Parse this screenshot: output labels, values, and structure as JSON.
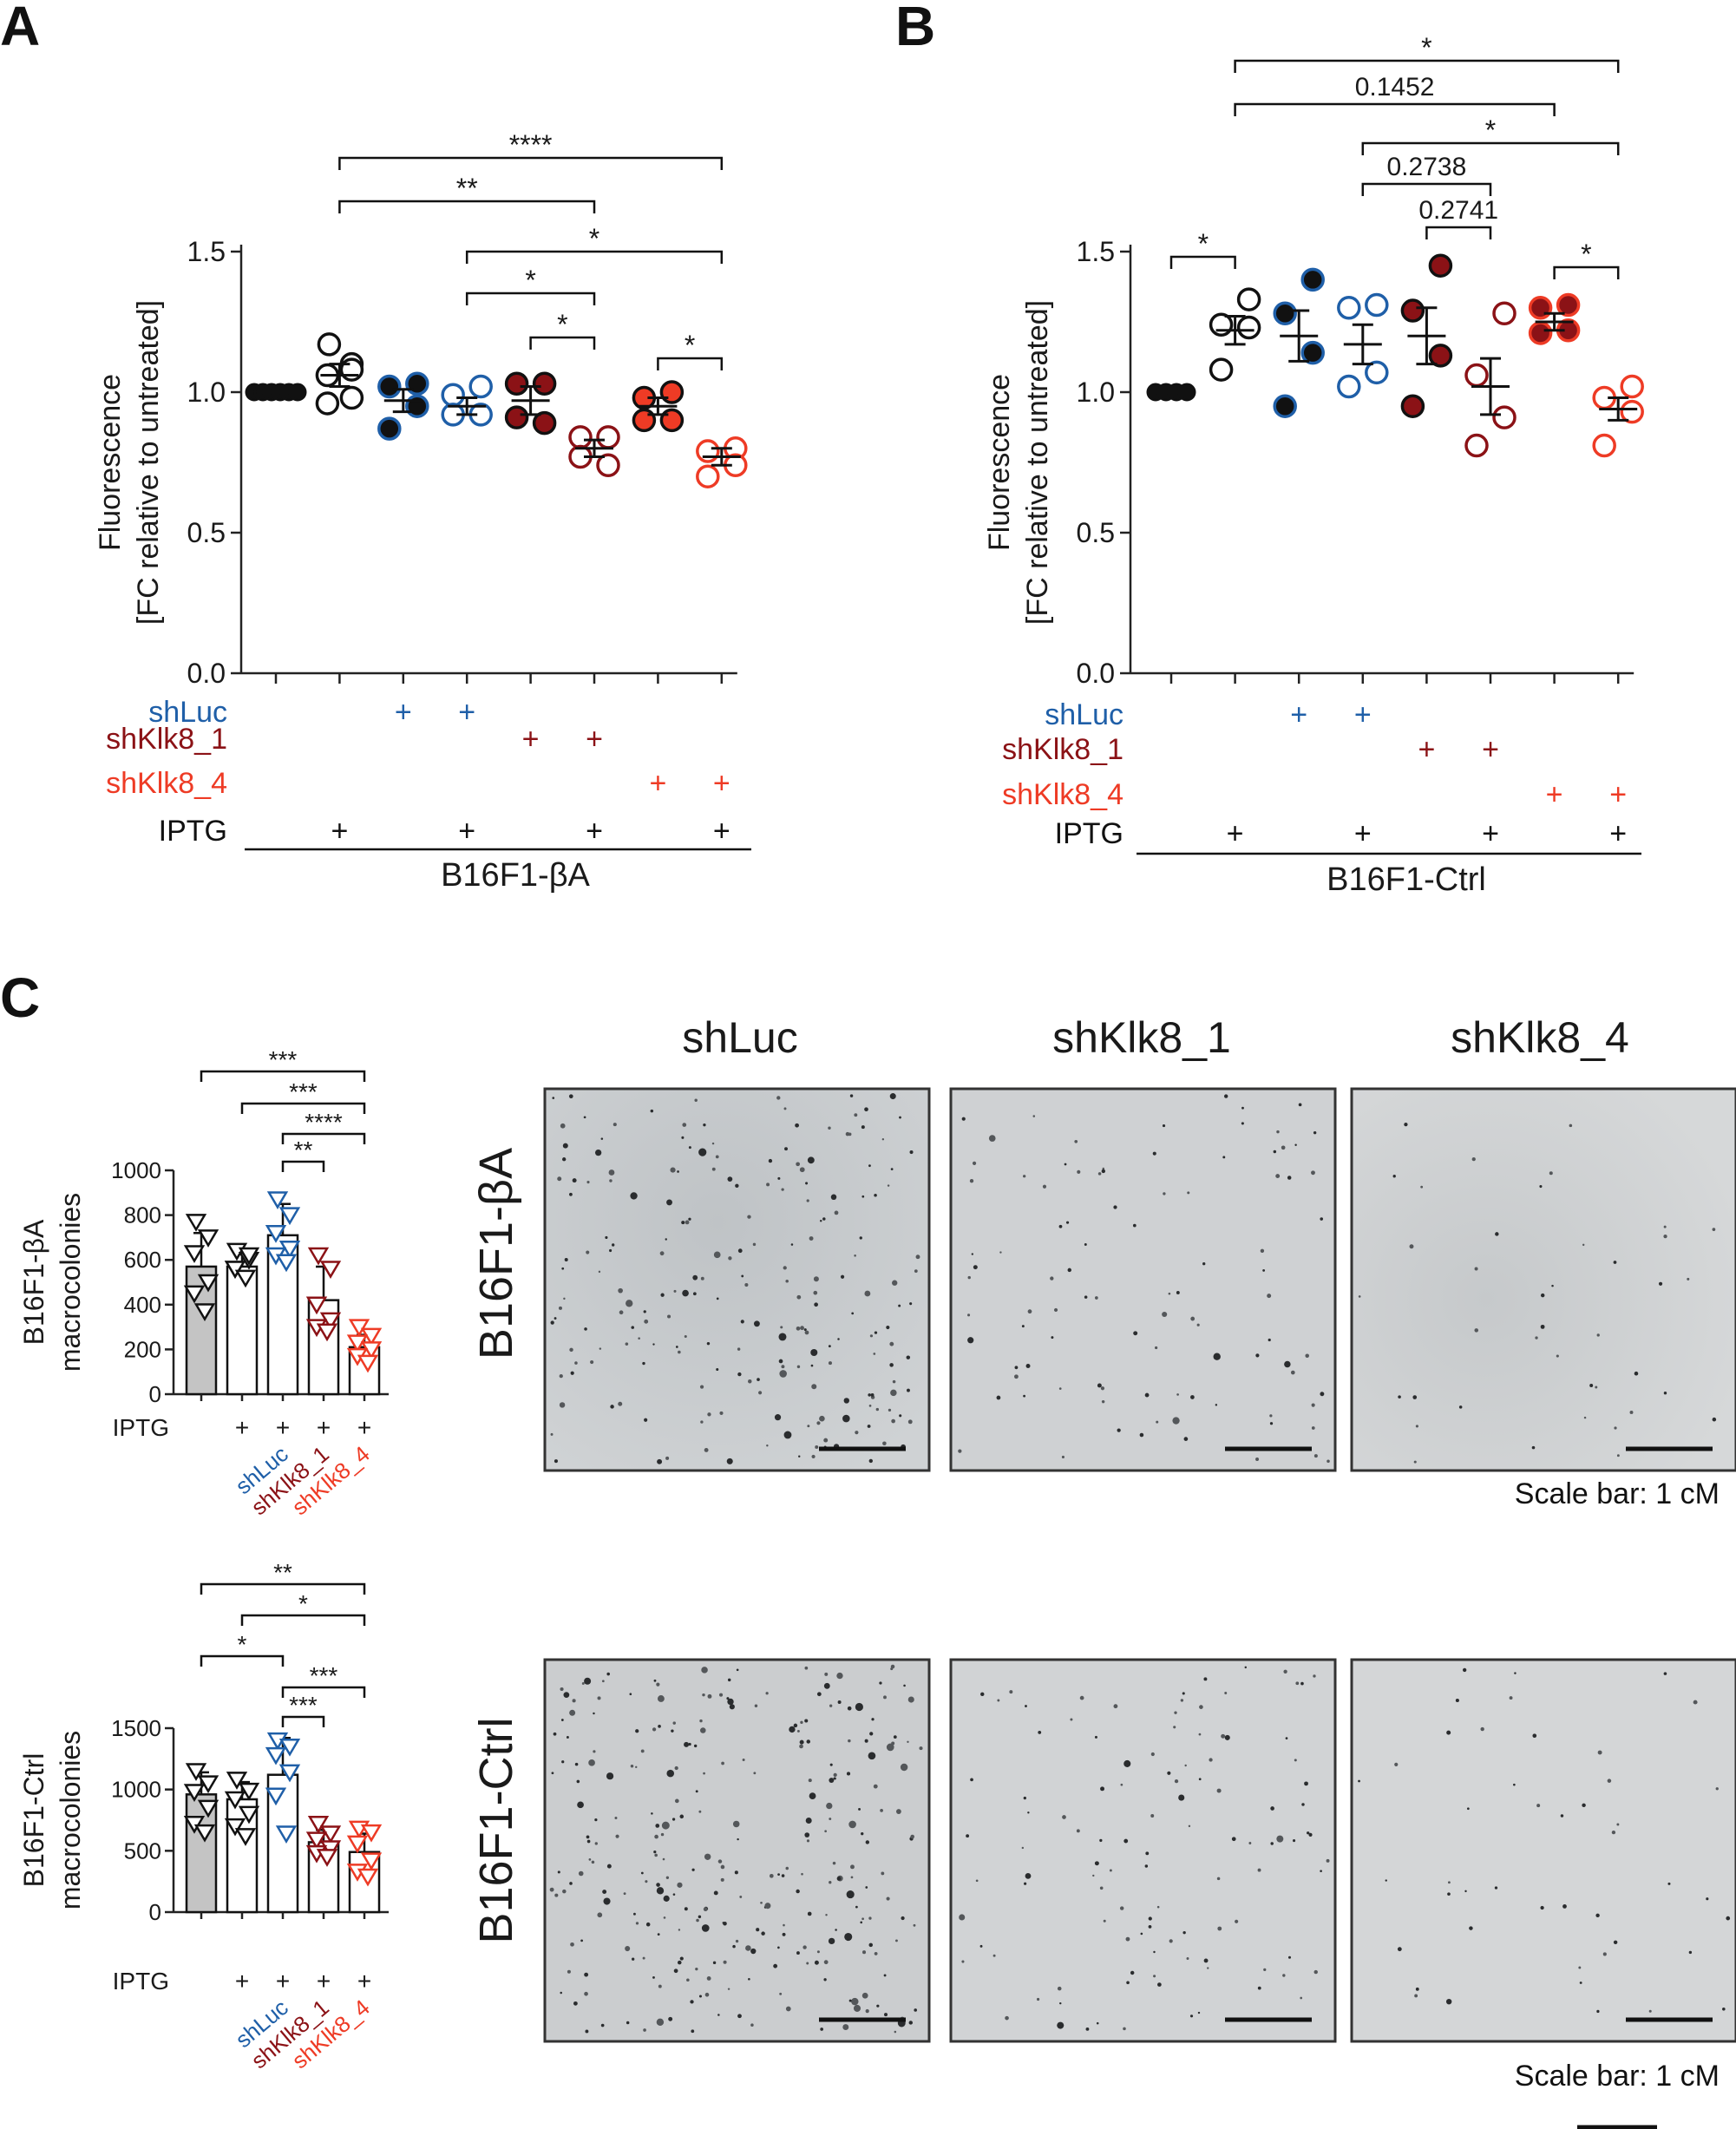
{
  "colors": {
    "shLuc": "#1f5fa8",
    "shKlk8_1": "#8b1216",
    "shKlk8_4": "#ee3b25",
    "black": "#111111",
    "gray_bar": "#c4c4c4",
    "image_bg": "#c9cccf"
  },
  "panels": {
    "a": {
      "letter": "A"
    },
    "b": {
      "letter": "B"
    },
    "c": {
      "letter": "C"
    }
  },
  "chart_data": [
    {
      "id": "A",
      "type": "scatter",
      "title": "",
      "ylabel": [
        "Fluorescence",
        "[FC relative to untreated]"
      ],
      "ylim": [
        0,
        1.5
      ],
      "yticks": [
        "0.0",
        "0.5",
        "1.0",
        "1.5"
      ],
      "group_label": "B16F1-βA",
      "row_labels": [
        "shLuc",
        "shKlk8_1",
        "shKlk8_4",
        "IPTG"
      ],
      "groups": [
        {
          "fill": "#111111",
          "stroke": "#111111",
          "shLuc": false,
          "klk1": false,
          "klk4": false,
          "iptg": false,
          "points": [
            1.0,
            1.0,
            1.0,
            1.0,
            1.0,
            1.0
          ],
          "mean": 1.0,
          "sem": 0
        },
        {
          "fill": "#ffffff",
          "stroke": "#111111",
          "shLuc": false,
          "klk1": false,
          "klk4": false,
          "iptg": true,
          "points": [
            1.17,
            1.1,
            1.06,
            0.98,
            0.96,
            1.08
          ],
          "mean": 1.06,
          "sem": 0.04
        },
        {
          "fill": "#111111",
          "stroke": "#1f5fa8",
          "shLuc": true,
          "klk1": false,
          "klk4": false,
          "iptg": false,
          "points": [
            1.03,
            1.02,
            0.95,
            0.87
          ],
          "mean": 0.97,
          "sem": 0.04
        },
        {
          "fill": "#ffffff",
          "stroke": "#1f5fa8",
          "shLuc": true,
          "klk1": false,
          "klk4": false,
          "iptg": true,
          "points": [
            1.02,
            0.99,
            0.92,
            0.92
          ],
          "mean": 0.95,
          "sem": 0.03
        },
        {
          "fill": "#8b1216",
          "stroke": "#111111",
          "shLuc": false,
          "klk1": true,
          "klk4": false,
          "iptg": false,
          "points": [
            1.03,
            1.03,
            0.89,
            0.91
          ],
          "mean": 0.97,
          "sem": 0.05
        },
        {
          "fill": "#ffffff",
          "stroke": "#8b1216",
          "shLuc": false,
          "klk1": true,
          "klk4": false,
          "iptg": true,
          "points": [
            0.84,
            0.84,
            0.74,
            0.77
          ],
          "mean": 0.8,
          "sem": 0.03
        },
        {
          "fill": "#ee3b25",
          "stroke": "#111111",
          "shLuc": false,
          "klk1": false,
          "klk4": true,
          "iptg": false,
          "points": [
            1.0,
            0.98,
            0.9,
            0.9
          ],
          "mean": 0.95,
          "sem": 0.03
        },
        {
          "fill": "#ffffff",
          "stroke": "#ee3b25",
          "shLuc": false,
          "klk1": false,
          "klk4": true,
          "iptg": true,
          "points": [
            0.8,
            0.79,
            0.74,
            0.7
          ],
          "mean": 0.77,
          "sem": 0.03
        }
      ],
      "comparisons": [
        {
          "a": 2,
          "b": 8,
          "label": "****"
        },
        {
          "a": 2,
          "b": 6,
          "label": "**"
        },
        {
          "a": 4,
          "b": 8,
          "label": "*"
        },
        {
          "a": 4,
          "b": 6,
          "label": "*"
        },
        {
          "a": 5,
          "b": 6,
          "label": "*"
        },
        {
          "a": 7,
          "b": 8,
          "label": "*"
        }
      ]
    },
    {
      "id": "B",
      "type": "scatter",
      "title": "",
      "ylabel": [
        "Fluorescence",
        "[FC relative to untreated]"
      ],
      "ylim": [
        0,
        1.5
      ],
      "yticks": [
        "0.0",
        "0.5",
        "1.0",
        "1.5"
      ],
      "group_label": "B16F1-Ctrl",
      "row_labels": [
        "shLuc",
        "shKlk8_1",
        "shKlk8_4",
        "IPTG"
      ],
      "groups": [
        {
          "fill": "#111111",
          "stroke": "#111111",
          "shLuc": false,
          "klk1": false,
          "klk4": false,
          "iptg": false,
          "points": [
            1.0,
            1.0,
            1.0,
            1.0
          ],
          "mean": 1.0,
          "sem": 0
        },
        {
          "fill": "#ffffff",
          "stroke": "#111111",
          "shLuc": false,
          "klk1": false,
          "klk4": false,
          "iptg": true,
          "points": [
            1.33,
            1.24,
            1.23,
            1.08
          ],
          "mean": 1.22,
          "sem": 0.05
        },
        {
          "fill": "#111111",
          "stroke": "#1f5fa8",
          "shLuc": true,
          "klk1": false,
          "klk4": false,
          "iptg": false,
          "points": [
            1.4,
            1.28,
            1.14,
            0.95
          ],
          "mean": 1.2,
          "sem": 0.09
        },
        {
          "fill": "#ffffff",
          "stroke": "#1f5fa8",
          "shLuc": true,
          "klk1": false,
          "klk4": false,
          "iptg": true,
          "points": [
            1.31,
            1.3,
            1.07,
            1.02
          ],
          "mean": 1.17,
          "sem": 0.07
        },
        {
          "fill": "#8b1216",
          "stroke": "#111111",
          "shLuc": false,
          "klk1": true,
          "klk4": false,
          "iptg": false,
          "points": [
            1.45,
            1.29,
            1.13,
            0.95
          ],
          "mean": 1.2,
          "sem": 0.1
        },
        {
          "fill": "#ffffff",
          "stroke": "#8b1216",
          "shLuc": false,
          "klk1": true,
          "klk4": false,
          "iptg": true,
          "points": [
            1.28,
            1.06,
            0.91,
            0.81
          ],
          "mean": 1.02,
          "sem": 0.1
        },
        {
          "fill": "#8b1216",
          "stroke": "#ee3b25",
          "shLuc": false,
          "klk1": false,
          "klk4": true,
          "iptg": false,
          "points": [
            1.31,
            1.3,
            1.22,
            1.21
          ],
          "mean": 1.25,
          "sem": 0.03
        },
        {
          "fill": "#ffffff",
          "stroke": "#ee3b25",
          "shLuc": false,
          "klk1": false,
          "klk4": true,
          "iptg": true,
          "points": [
            1.02,
            0.98,
            0.93,
            0.81
          ],
          "mean": 0.94,
          "sem": 0.04
        }
      ],
      "comparisons": [
        {
          "a": 2,
          "b": 8,
          "label": "*"
        },
        {
          "a": 2,
          "b": 7,
          "label": "0.1452"
        },
        {
          "a": 4,
          "b": 8,
          "label": "*"
        },
        {
          "a": 4,
          "b": 6,
          "label": "0.2738"
        },
        {
          "a": 5,
          "b": 6,
          "label": "0.2741"
        },
        {
          "a": 1,
          "b": 2,
          "label": "*"
        },
        {
          "a": 7,
          "b": 8,
          "label": "*"
        }
      ]
    },
    {
      "id": "C-top",
      "type": "bar",
      "ylabel": [
        "B16F1-βA",
        "macrocolonies"
      ],
      "ylim": [
        0,
        1000
      ],
      "yticks": [
        "0",
        "200",
        "400",
        "600",
        "800",
        "1000"
      ],
      "row_label": "IPTG",
      "iptg": [
        false,
        true,
        true,
        true,
        true
      ],
      "categories": [
        "",
        "",
        "shLuc",
        "shKlk8_1",
        "shKlk8_4"
      ],
      "values": [
        570,
        570,
        710,
        420,
        210
      ],
      "sd": [
        150,
        60,
        140,
        150,
        55
      ],
      "points": [
        [
          770,
          700,
          630,
          500,
          450,
          370
        ],
        [
          640,
          600,
          560,
          620,
          560,
          520
        ],
        [
          870,
          800,
          720,
          650,
          620,
          590
        ],
        [
          620,
          560,
          400,
          330,
          300,
          280
        ],
        [
          300,
          260,
          230,
          200,
          170,
          140
        ]
      ],
      "bar_fill": [
        "#c4c4c4",
        "#ffffff",
        "#ffffff",
        "#ffffff",
        "#ffffff"
      ],
      "marker_color": [
        "#111111",
        "#111111",
        "#1f5fa8",
        "#8b1216",
        "#ee3b25"
      ],
      "comparisons": [
        {
          "a": 1,
          "b": 5,
          "label": "***"
        },
        {
          "a": 2,
          "b": 5,
          "label": "***"
        },
        {
          "a": 3,
          "b": 5,
          "label": "****"
        },
        {
          "a": 3,
          "b": 4,
          "label": "**"
        }
      ]
    },
    {
      "id": "C-bottom",
      "type": "bar",
      "ylabel": [
        "B16F1-Ctrl",
        "macrocolonies"
      ],
      "ylim": [
        0,
        1500
      ],
      "yticks": [
        "0",
        "500",
        "1000",
        "1500"
      ],
      "row_label": "IPTG",
      "iptg": [
        false,
        true,
        true,
        true,
        true
      ],
      "categories": [
        "",
        "",
        "shLuc",
        "shKlk8_1",
        "shKlk8_4"
      ],
      "values": [
        960,
        920,
        1120,
        570,
        490
      ],
      "sd": [
        180,
        140,
        300,
        100,
        150
      ],
      "points": [
        [
          1150,
          1050,
          980,
          850,
          720,
          650
        ],
        [
          1080,
          990,
          920,
          800,
          700,
          620
        ],
        [
          1400,
          1350,
          1280,
          1140,
          950,
          640
        ],
        [
          720,
          640,
          590,
          520,
          480,
          450
        ],
        [
          680,
          650,
          560,
          420,
          330,
          290
        ]
      ],
      "bar_fill": [
        "#c4c4c4",
        "#ffffff",
        "#ffffff",
        "#ffffff",
        "#ffffff"
      ],
      "marker_color": [
        "#111111",
        "#111111",
        "#1f5fa8",
        "#8b1216",
        "#ee3b25"
      ],
      "comparisons": [
        {
          "a": 1,
          "b": 5,
          "label": "**"
        },
        {
          "a": 2,
          "b": 5,
          "label": "*"
        },
        {
          "a": 1,
          "b": 3,
          "label": "*"
        },
        {
          "a": 3,
          "b": 5,
          "label": "***"
        },
        {
          "a": 3,
          "b": 4,
          "label": "***"
        }
      ]
    }
  ],
  "images": {
    "columns": [
      "shLuc",
      "shKlk8_1",
      "shKlk8_4"
    ],
    "rows": [
      "B16F1-βA",
      "B16F1-Ctrl"
    ],
    "scale_bar_text": "Scale bar: 1 cM"
  }
}
